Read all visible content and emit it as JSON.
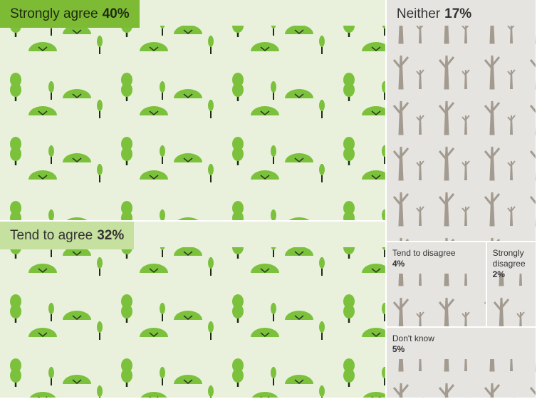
{
  "chart_data": {
    "type": "treemap",
    "categories": [
      "Strongly agree",
      "Tend to agree",
      "Neither",
      "Tend to disagree",
      "Strongly disagree",
      "Don't know"
    ],
    "values": [
      40,
      32,
      17,
      4,
      2,
      5
    ],
    "value_labels": [
      "40%",
      "32%",
      "17%",
      "4%",
      "2%",
      "5%"
    ],
    "colors": [
      "#e9f1dc",
      "#e9f1dc",
      "#e6e4e1",
      "#e6e4e1",
      "#e6e4e1",
      "#e6e4e1"
    ]
  }
}
